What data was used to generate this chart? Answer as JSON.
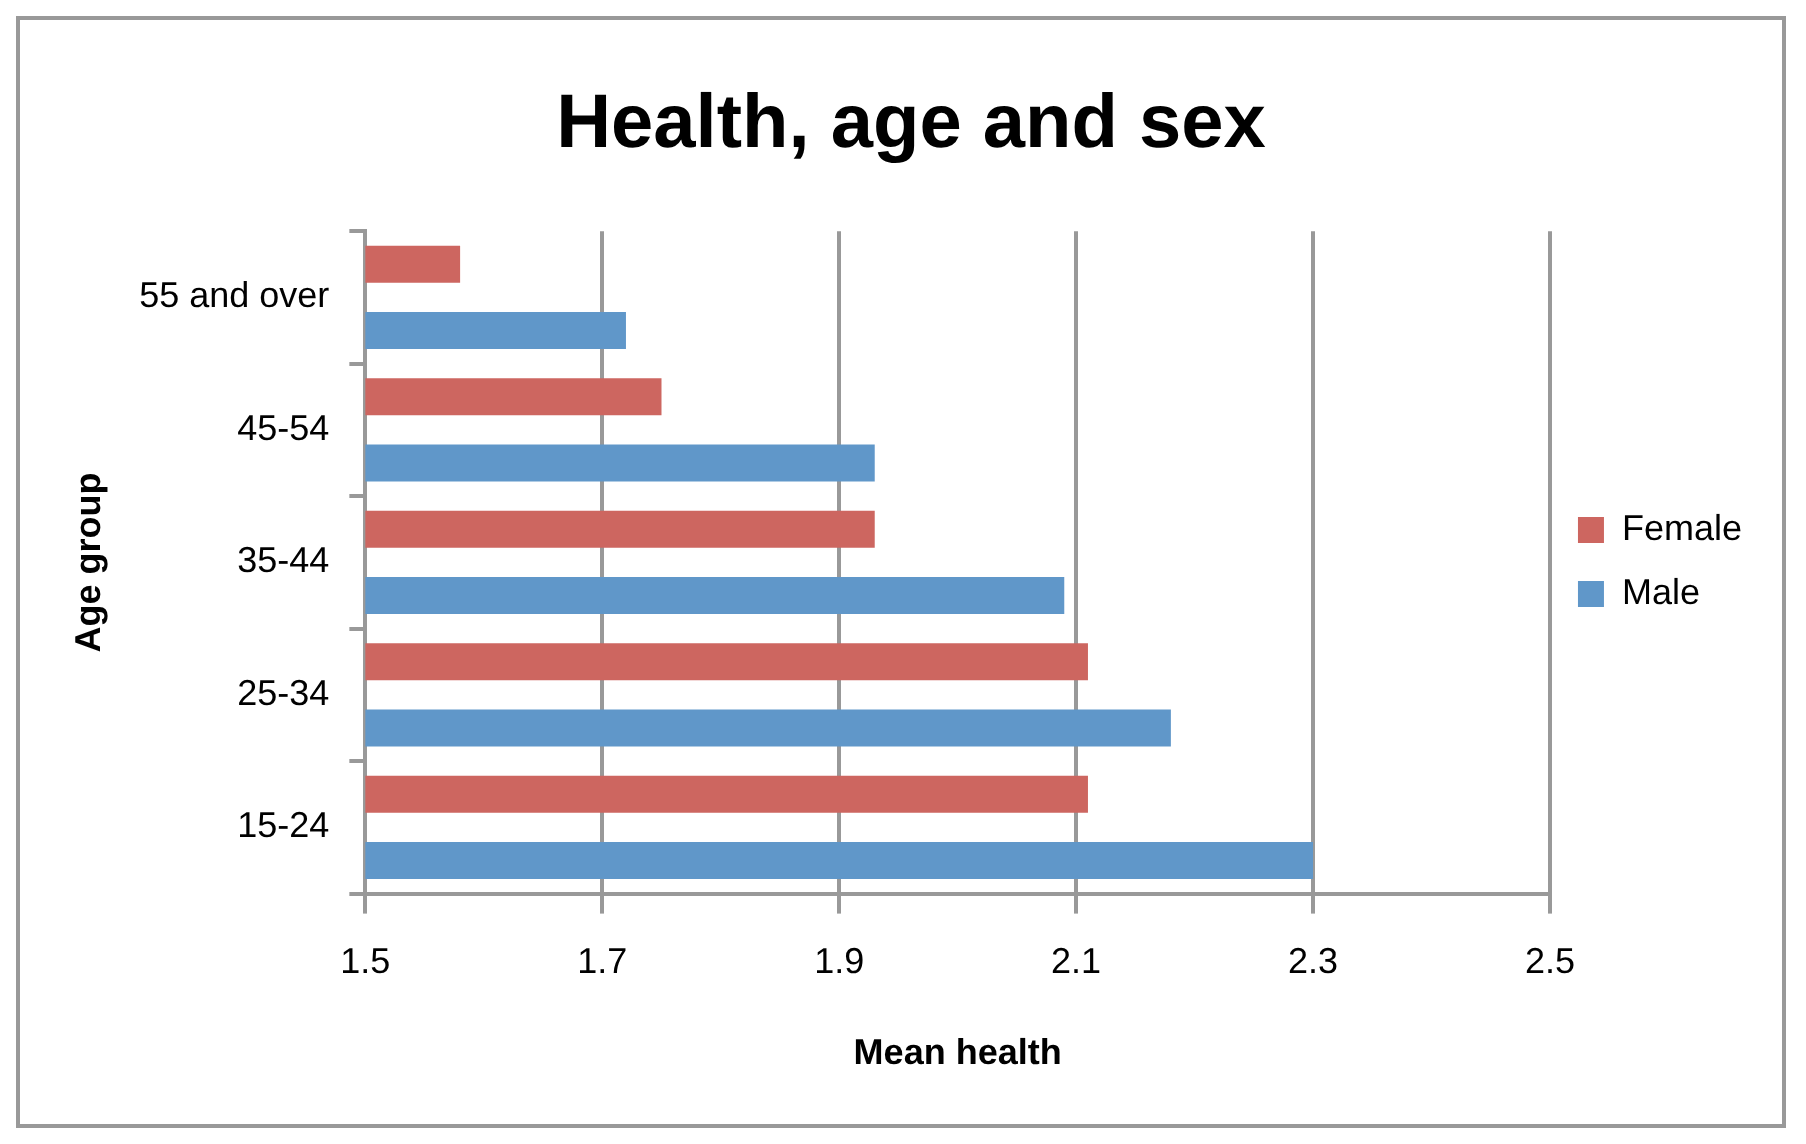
{
  "chart_data": {
    "type": "bar",
    "orientation": "horizontal",
    "title": "Health, age and sex",
    "xlabel": "Mean health",
    "ylabel": "Age group",
    "categories": [
      "55 and over",
      "45-54",
      "35-44",
      "25-34",
      "15-24"
    ],
    "series": [
      {
        "name": "Female",
        "color": "#cd6660",
        "values": [
          1.58,
          1.75,
          1.93,
          2.11,
          2.11
        ]
      },
      {
        "name": "Male",
        "color": "#6097c9",
        "values": [
          1.72,
          1.93,
          2.09,
          2.18,
          2.3
        ]
      }
    ],
    "xlim": [
      1.5,
      2.5
    ],
    "xticks": [
      1.5,
      1.7,
      1.9,
      2.1,
      2.3,
      2.5
    ],
    "grid": "x",
    "legend": "right"
  }
}
